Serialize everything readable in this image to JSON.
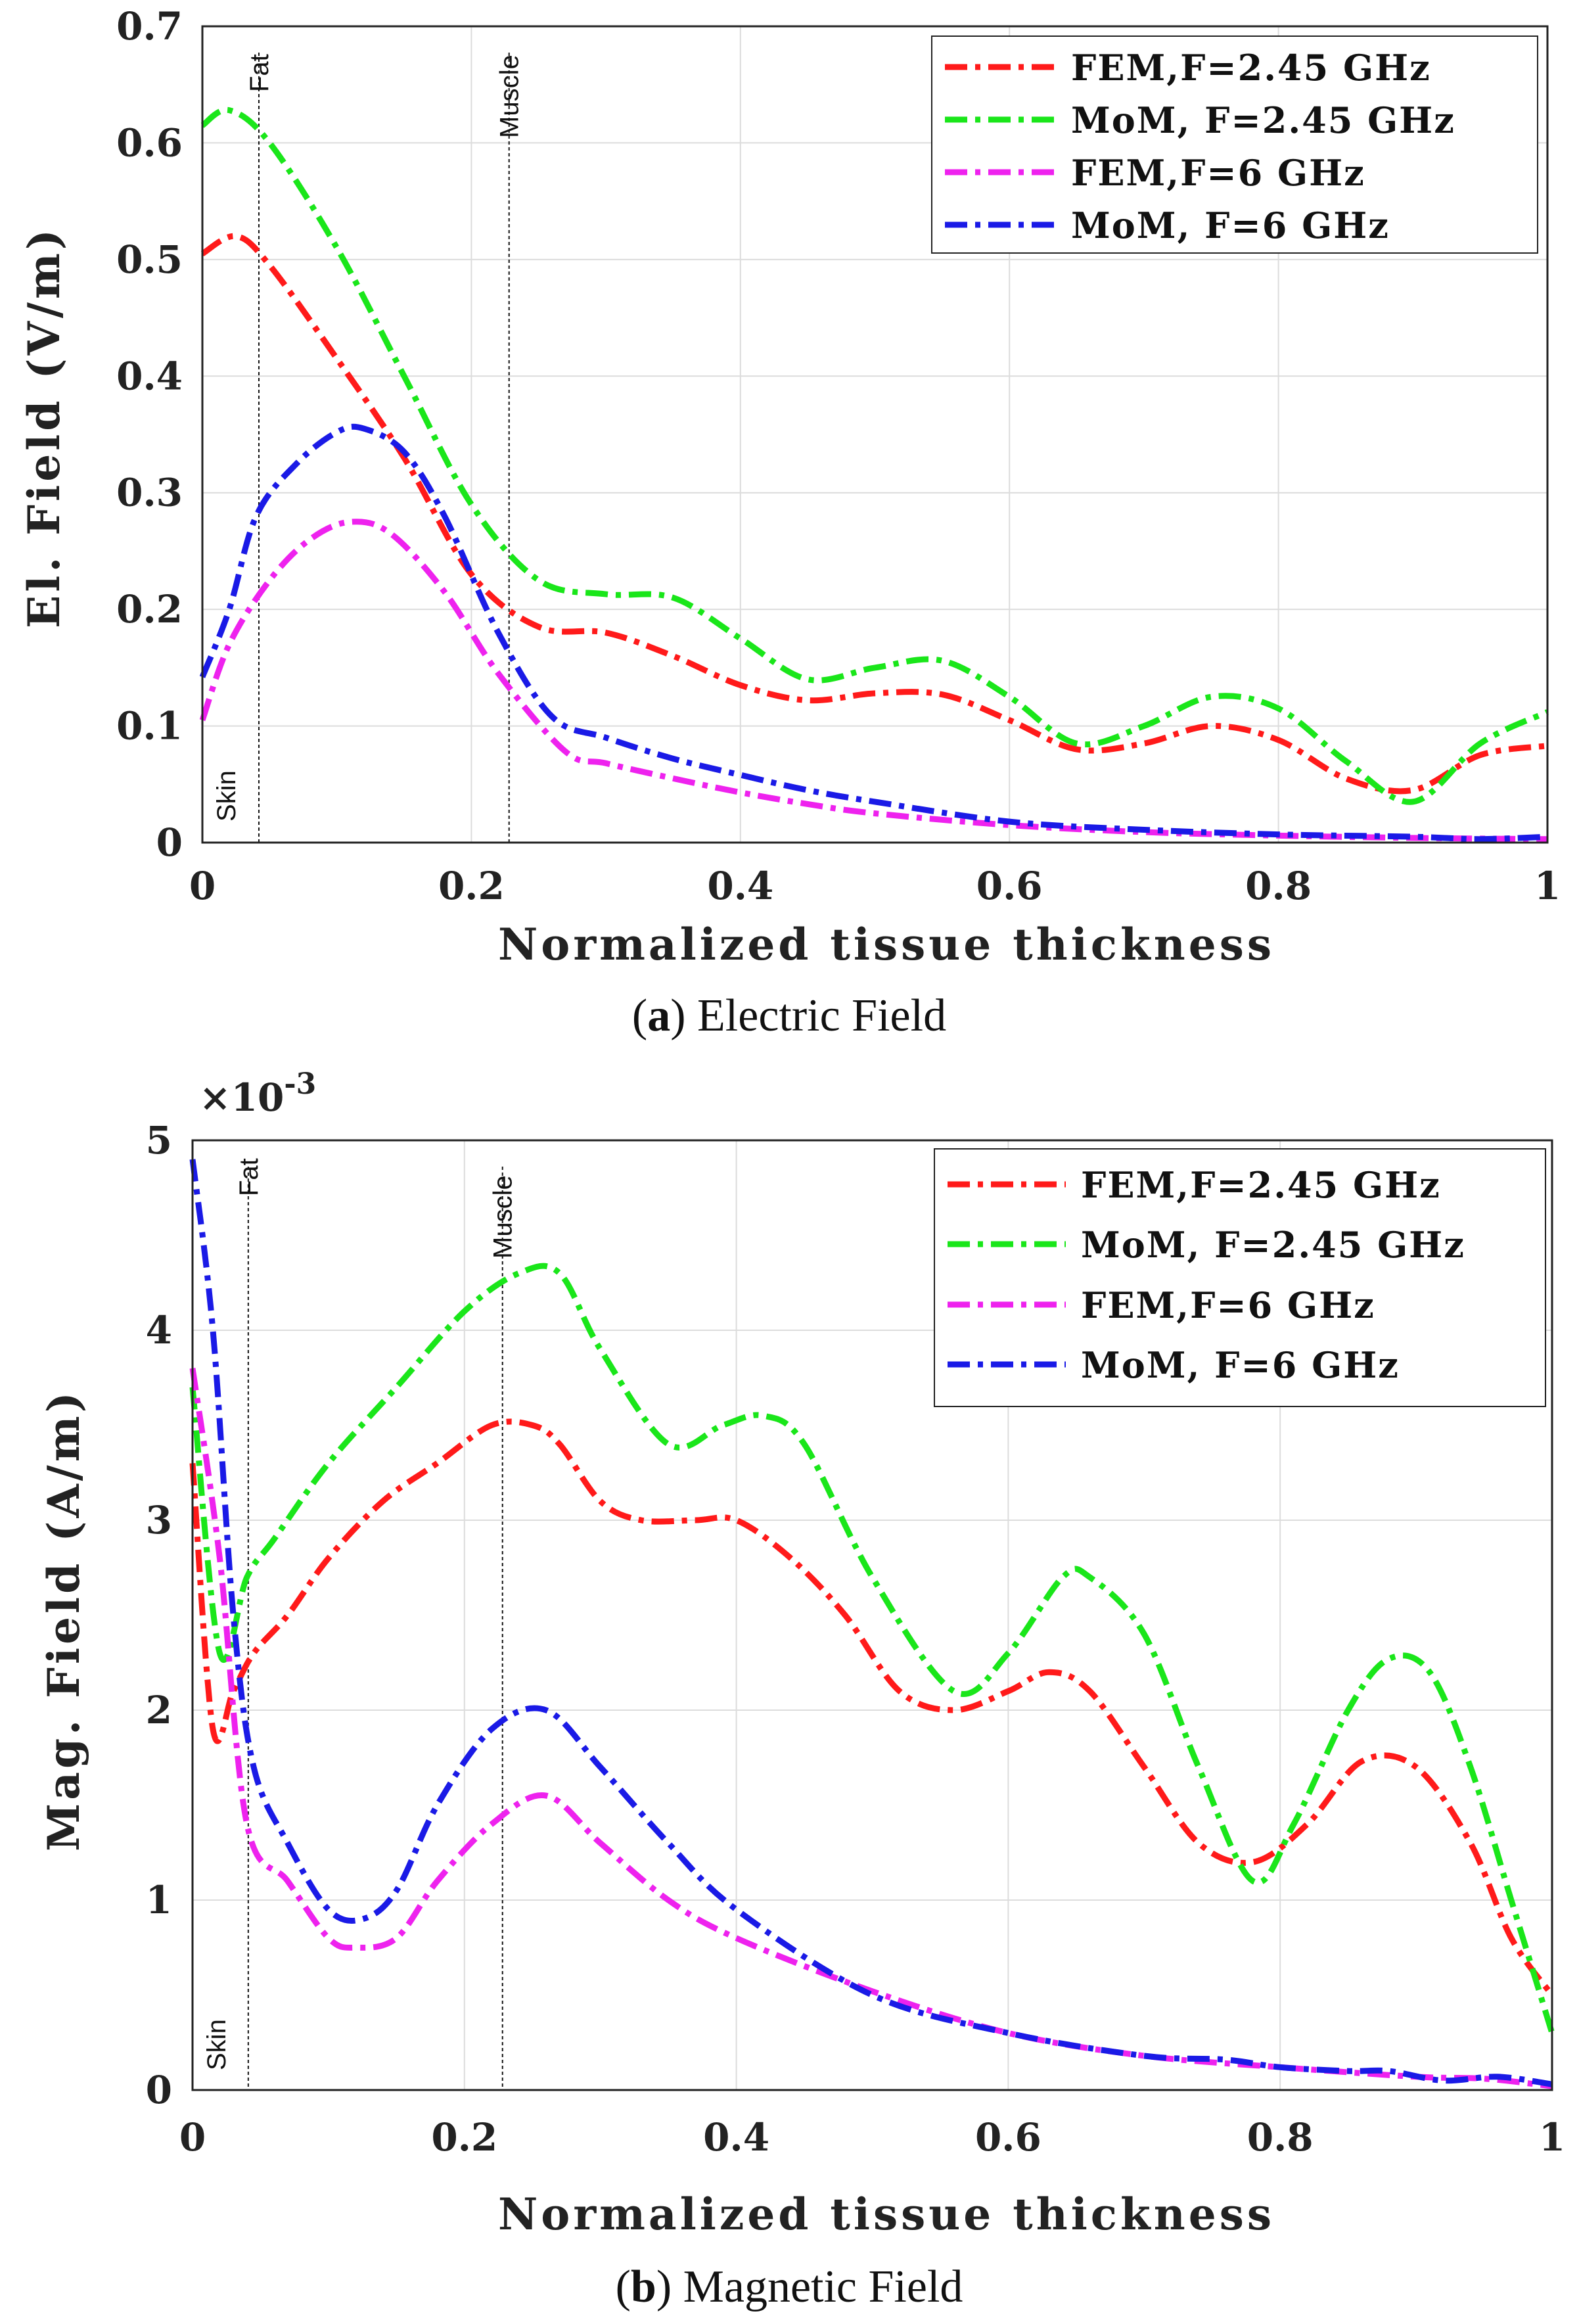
{
  "chart_data": [
    {
      "type": "line",
      "xlabel": "Normalized tissue thickness",
      "ylabel": "El. Field (V/m)",
      "xlim": [
        0,
        1
      ],
      "ylim": [
        0,
        0.7
      ],
      "xticks": [
        "0",
        "0.2",
        "0.4",
        "0.6",
        "0.8",
        "1"
      ],
      "yticks": [
        "0",
        "0.1",
        "0.2",
        "0.3",
        "0.4",
        "0.5",
        "0.6",
        "0.7"
      ],
      "grid": true,
      "legend_position": "top-right",
      "region_labels": [
        "Skin",
        "Fat",
        "Muscle"
      ],
      "boundaries": [
        0.042,
        0.228
      ],
      "caption_letter": "a",
      "caption_text": "Electric Field",
      "series": [
        {
          "name": "FEM,F=2.45 GHz",
          "color": "#ff1a1a",
          "x": [
            0,
            0.025,
            0.05,
            0.1,
            0.15,
            0.2,
            0.25,
            0.3,
            0.35,
            0.4,
            0.45,
            0.5,
            0.55,
            0.6,
            0.65,
            0.7,
            0.75,
            0.8,
            0.85,
            0.9,
            0.95,
            1.0
          ],
          "y": [
            0.505,
            0.52,
            0.495,
            0.415,
            0.33,
            0.23,
            0.185,
            0.18,
            0.16,
            0.135,
            0.122,
            0.128,
            0.127,
            0.105,
            0.08,
            0.085,
            0.1,
            0.088,
            0.055,
            0.045,
            0.075,
            0.083
          ]
        },
        {
          "name": "MoM, F=2.45 GHz",
          "color": "#1ae61a",
          "x": [
            0,
            0.02,
            0.05,
            0.1,
            0.15,
            0.2,
            0.25,
            0.3,
            0.35,
            0.4,
            0.45,
            0.5,
            0.55,
            0.6,
            0.65,
            0.7,
            0.75,
            0.8,
            0.85,
            0.9,
            0.95,
            1.0
          ],
          "y": [
            0.615,
            0.628,
            0.6,
            0.51,
            0.4,
            0.29,
            0.225,
            0.213,
            0.21,
            0.175,
            0.14,
            0.15,
            0.156,
            0.125,
            0.085,
            0.1,
            0.125,
            0.115,
            0.07,
            0.035,
            0.085,
            0.112
          ]
        },
        {
          "name": "FEM,F=6 GHz",
          "color": "#ee22ee",
          "x": [
            0,
            0.02,
            0.05,
            0.08,
            0.11,
            0.14,
            0.18,
            0.22,
            0.27,
            0.3,
            0.35,
            0.4,
            0.45,
            0.5,
            0.6,
            0.7,
            0.8,
            0.9,
            1.0
          ],
          "y": [
            0.105,
            0.17,
            0.225,
            0.26,
            0.275,
            0.265,
            0.215,
            0.145,
            0.078,
            0.068,
            0.055,
            0.043,
            0.033,
            0.025,
            0.015,
            0.009,
            0.006,
            0.004,
            0.003
          ]
        },
        {
          "name": "MoM, F=6 GHz",
          "color": "#1a1ae6",
          "x": [
            0,
            0.02,
            0.04,
            0.07,
            0.1,
            0.12,
            0.15,
            0.18,
            0.22,
            0.26,
            0.3,
            0.35,
            0.4,
            0.45,
            0.5,
            0.6,
            0.7,
            0.8,
            0.9,
            0.95,
            1.0
          ],
          "y": [
            0.142,
            0.2,
            0.28,
            0.325,
            0.352,
            0.355,
            0.335,
            0.28,
            0.18,
            0.108,
            0.09,
            0.072,
            0.058,
            0.045,
            0.035,
            0.018,
            0.011,
            0.007,
            0.005,
            0.003,
            0.005
          ]
        }
      ]
    },
    {
      "type": "line",
      "xlabel": "Normalized tissue thickness",
      "ylabel": "Mag. Field (A/m)",
      "xlim": [
        0,
        1
      ],
      "ylim": [
        0,
        0.005
      ],
      "scale_factor": "×10",
      "scale_exponent": "-3",
      "xticks": [
        "0",
        "0.2",
        "0.4",
        "0.6",
        "0.8",
        "1"
      ],
      "yticks": [
        "0",
        "1",
        "2",
        "3",
        "4",
        "5"
      ],
      "grid": true,
      "legend_position": "top-right",
      "region_labels": [
        "Skin",
        "Fat",
        "Muscle"
      ],
      "boundaries": [
        0.041,
        0.228
      ],
      "caption_letter": "b",
      "caption_text": "Magnetic Field",
      "series": [
        {
          "name": "FEM,F=2.45 GHz",
          "color": "#ff1a1a",
          "x": [
            0,
            0.015,
            0.03,
            0.045,
            0.07,
            0.1,
            0.14,
            0.18,
            0.22,
            0.25,
            0.27,
            0.3,
            0.33,
            0.37,
            0.4,
            0.44,
            0.48,
            0.52,
            0.56,
            0.6,
            0.63,
            0.66,
            0.7,
            0.74,
            0.78,
            0.82,
            0.86,
            0.9,
            0.94,
            0.97,
            1.0
          ],
          "y": [
            0.0033,
            0.0019,
            0.0021,
            0.0023,
            0.0025,
            0.0028,
            0.0031,
            0.0033,
            0.0035,
            0.0035,
            0.0034,
            0.0031,
            0.003,
            0.003,
            0.003,
            0.0028,
            0.0025,
            0.0021,
            0.002,
            0.0021,
            0.0022,
            0.0021,
            0.0017,
            0.0013,
            0.0012,
            0.0014,
            0.00173,
            0.0017,
            0.0013,
            0.0008,
            0.0005
          ]
        },
        {
          "name": "MoM, F=2.45 GHz",
          "color": "#1ae61a",
          "x": [
            0,
            0.02,
            0.04,
            0.06,
            0.1,
            0.15,
            0.2,
            0.24,
            0.27,
            0.3,
            0.35,
            0.39,
            0.42,
            0.45,
            0.5,
            0.56,
            0.6,
            0.64,
            0.66,
            0.7,
            0.74,
            0.78,
            0.81,
            0.85,
            0.88,
            0.91,
            0.94,
            0.97,
            1.0
          ],
          "y": [
            0.0037,
            0.0023,
            0.0027,
            0.0029,
            0.0033,
            0.0037,
            0.0041,
            0.0043,
            0.0043,
            0.0039,
            0.0034,
            0.0035,
            0.00355,
            0.0034,
            0.0027,
            0.0021,
            0.0023,
            0.0027,
            0.0027,
            0.0024,
            0.0017,
            0.0011,
            0.0014,
            0.002,
            0.00227,
            0.0022,
            0.0017,
            0.001,
            0.0003
          ]
        },
        {
          "name": "FEM,F=6 GHz",
          "color": "#ee22ee",
          "x": [
            0,
            0.02,
            0.04,
            0.07,
            0.1,
            0.12,
            0.15,
            0.18,
            0.22,
            0.26,
            0.3,
            0.35,
            0.4,
            0.5,
            0.6,
            0.7,
            0.8,
            0.9,
            0.95,
            1.0
          ],
          "y": [
            0.0038,
            0.0028,
            0.0014,
            0.0011,
            0.0008,
            0.00075,
            0.0008,
            0.0011,
            0.0014,
            0.00155,
            0.0013,
            0.001,
            0.0008,
            0.00052,
            0.0003,
            0.00018,
            0.00012,
            7e-05,
            6e-05,
            2e-05
          ]
        },
        {
          "name": "MoM, F=6 GHz",
          "color": "#1a1ae6",
          "x": [
            0,
            0.015,
            0.03,
            0.045,
            0.07,
            0.1,
            0.125,
            0.15,
            0.18,
            0.22,
            0.26,
            0.3,
            0.35,
            0.4,
            0.5,
            0.6,
            0.7,
            0.76,
            0.8,
            0.85,
            0.88,
            0.92,
            0.96,
            1.0
          ],
          "y": [
            0.0049,
            0.004,
            0.0025,
            0.0017,
            0.0013,
            0.00095,
            0.0009,
            0.00105,
            0.0015,
            0.0019,
            0.002,
            0.0017,
            0.0013,
            0.00095,
            0.0005,
            0.0003,
            0.00018,
            0.00016,
            0.00012,
            0.0001,
            0.0001,
            5e-05,
            7e-05,
            3e-05
          ]
        }
      ]
    }
  ]
}
